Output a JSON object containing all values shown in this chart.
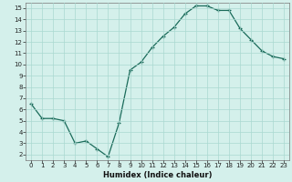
{
  "x": [
    0,
    1,
    2,
    3,
    4,
    5,
    6,
    7,
    8,
    9,
    10,
    11,
    12,
    13,
    14,
    15,
    16,
    17,
    18,
    19,
    20,
    21,
    22,
    23
  ],
  "y": [
    6.5,
    5.2,
    5.2,
    5.0,
    3.0,
    3.2,
    2.5,
    1.8,
    4.8,
    9.5,
    10.2,
    11.5,
    12.5,
    13.3,
    14.5,
    15.2,
    15.2,
    14.8,
    14.8,
    13.2,
    12.2,
    11.2,
    10.7,
    10.5
  ],
  "xlabel": "Humidex (Indice chaleur)",
  "line_color": "#1a6b5a",
  "marker": "+",
  "bg_color": "#d4f0eb",
  "grid_color": "#aad8d0",
  "ylim": [
    1.5,
    15.5
  ],
  "xlim": [
    -0.5,
    23.5
  ],
  "yticks": [
    2,
    3,
    4,
    5,
    6,
    7,
    8,
    9,
    10,
    11,
    12,
    13,
    14,
    15
  ],
  "xtick_labels": [
    "0",
    "1",
    "2",
    "3",
    "4",
    "5",
    "6",
    "7",
    "8",
    "9",
    "10",
    "11",
    "12",
    "13",
    "14",
    "15",
    "16",
    "17",
    "18",
    "19",
    "20",
    "21",
    "22",
    "23"
  ],
  "xlabel_fontsize": 6.0,
  "tick_fontsize": 5.0,
  "linewidth": 0.9,
  "markersize": 3.5
}
